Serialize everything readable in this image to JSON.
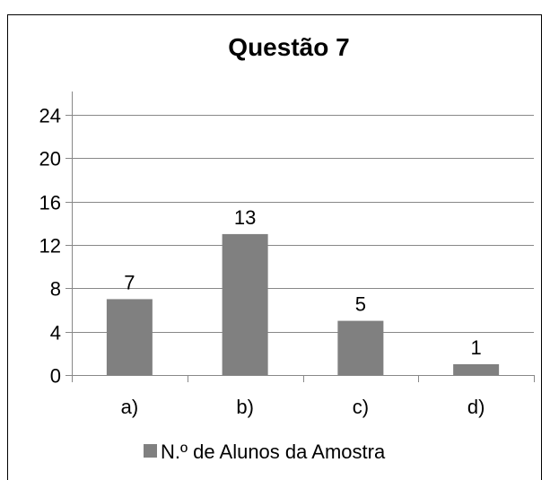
{
  "chart_data": {
    "type": "bar",
    "title": "Questão 7",
    "categories": [
      "a)",
      "b)",
      "c)",
      "d)"
    ],
    "series": [
      {
        "name": "N.º de Alunos da Amostra",
        "values": [
          7,
          13,
          5,
          1
        ],
        "color": "#808080"
      }
    ],
    "yticks": [
      0,
      4,
      8,
      12,
      16,
      20,
      24
    ],
    "ylim": [
      0,
      24
    ],
    "grid": true,
    "legend": "bottom"
  }
}
